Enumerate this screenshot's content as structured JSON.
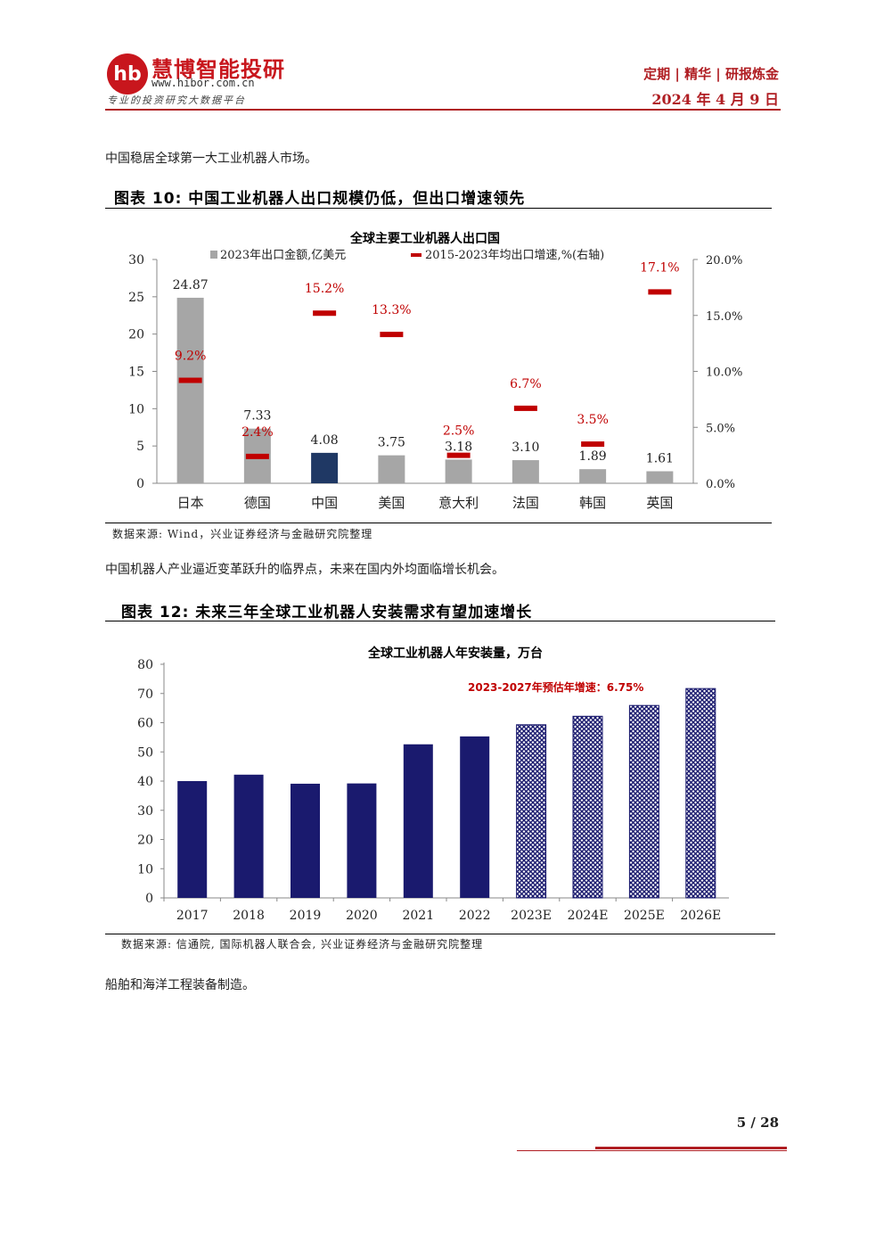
{
  "header": {
    "logo_mark": "hb",
    "brand": "慧博智能投研",
    "url": "www.hibor.com.cn",
    "slogan": "专业的投资研究大数据平台",
    "tagline": "定期 | 精华 | 研报炼金",
    "date": "2024 年 4 月 9 日"
  },
  "body": {
    "para1": "中国稳居全球第一大工业机器人市场。",
    "fig10_title": "图表 10:  中国工业机器人出口规模仍低，但出口增速领先",
    "fig10_source": "数据来源:  Wind，兴业证券经济与金融研究院整理",
    "para2": "中国机器人产业逼近变革跃升的临界点，未来在国内外均面临增长机会。",
    "fig12_title": "图表 12:  未来三年全球工业机器人安装需求有望加速增长",
    "fig12_source": "数据来源: 信通院, 国际机器人联合会, 兴业证券经济与金融研究院整理",
    "para3": "船舶和海洋工程装备制造。"
  },
  "footer": {
    "page": "5 / 28"
  },
  "colors": {
    "brand_red": "#c8161d",
    "bar_gray": "#a6a6a6",
    "bar_navy": "#1f3864",
    "bar_dark": "#1a1a6e",
    "marker_red": "#c00000"
  },
  "chart_data": [
    {
      "type": "bar",
      "title": "全球主要工业机器人出口国",
      "categories": [
        "日本",
        "德国",
        "中国",
        "美国",
        "意大利",
        "法国",
        "韩国",
        "英国"
      ],
      "series": [
        {
          "name": "2023年出口金额,亿美元",
          "type": "bar",
          "axis": "left",
          "values": [
            24.87,
            7.33,
            4.08,
            3.75,
            3.18,
            3.1,
            1.89,
            1.61
          ],
          "labels": [
            "24.87",
            "7.33",
            "4.08",
            "3.75",
            "3.18",
            "3.10",
            "1.89",
            "1.61"
          ]
        },
        {
          "name": "2015-2023年均出口增速,%(右轴)",
          "type": "marker",
          "axis": "right",
          "values": [
            9.2,
            2.4,
            15.2,
            13.3,
            2.5,
            6.7,
            3.5,
            17.1
          ],
          "labels": [
            "9.2%",
            "2.4%",
            "15.2%",
            "13.3%",
            "2.5%",
            "6.7%",
            "3.5%",
            "17.1%"
          ]
        }
      ],
      "ylim_left": [
        0,
        30
      ],
      "yticks_left": [
        "0",
        "5",
        "10",
        "15",
        "20",
        "25",
        "30"
      ],
      "ylim_right": [
        0,
        20
      ],
      "yticks_right": [
        "0.0%",
        "5.0%",
        "10.0%",
        "15.0%",
        "20.0%"
      ],
      "highlight_category": "中国",
      "legend": "top"
    },
    {
      "type": "bar",
      "title": "全球工业机器人年安装量，万台",
      "categories": [
        "2017",
        "2018",
        "2019",
        "2020",
        "2021",
        "2022",
        "2023E",
        "2024E",
        "2025E",
        "2026E"
      ],
      "values": [
        40.0,
        42.2,
        39.1,
        39.2,
        52.6,
        55.3,
        59.3,
        62.2,
        65.9,
        71.7
      ],
      "estimated": [
        false,
        false,
        false,
        false,
        false,
        false,
        true,
        true,
        true,
        true
      ],
      "ylim": [
        0,
        80
      ],
      "yticks": [
        "0",
        "10",
        "20",
        "30",
        "40",
        "50",
        "60",
        "70",
        "80"
      ],
      "annotation": "2023-2027年预估年增速：6.75%"
    }
  ]
}
